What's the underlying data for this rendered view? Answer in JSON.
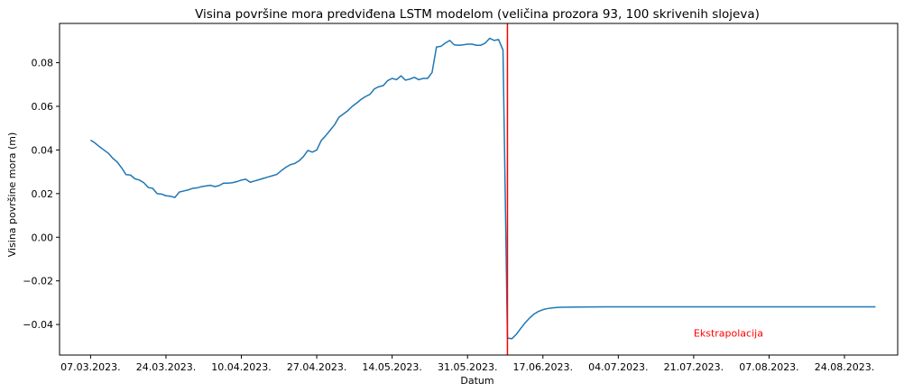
{
  "chart_data": {
    "type": "line",
    "title": "Visina površine mora predviđena LSTM modelom (veličina prozora 93, 100 skrivenih slojeva)",
    "xlabel": "Datum",
    "ylabel": "Visina površine mora (m)",
    "ylim": [
      -0.054,
      0.098
    ],
    "xlim": [
      "2023-02-28",
      "2023-09-05"
    ],
    "grid": false,
    "x_ticks": [
      {
        "date": "2023-03-07",
        "label": "07.03.2023."
      },
      {
        "date": "2023-03-24",
        "label": "24.03.2023."
      },
      {
        "date": "2023-04-10",
        "label": "10.04.2023."
      },
      {
        "date": "2023-04-27",
        "label": "27.04.2023."
      },
      {
        "date": "2023-05-14",
        "label": "14.05.2023."
      },
      {
        "date": "2023-05-31",
        "label": "31.05.2023."
      },
      {
        "date": "2023-06-17",
        "label": "17.06.2023."
      },
      {
        "date": "2023-07-04",
        "label": "04.07.2023."
      },
      {
        "date": "2023-07-21",
        "label": "21.07.2023."
      },
      {
        "date": "2023-08-07",
        "label": "07.08.2023."
      },
      {
        "date": "2023-08-24",
        "label": "24.08.2023."
      }
    ],
    "y_ticks": [
      {
        "value": -0.04,
        "label": "−0.04"
      },
      {
        "value": -0.02,
        "label": "−0.02"
      },
      {
        "value": 0.0,
        "label": "0.00"
      },
      {
        "value": 0.02,
        "label": "0.02"
      },
      {
        "value": 0.04,
        "label": "0.04"
      },
      {
        "value": 0.06,
        "label": "0.06"
      },
      {
        "value": 0.08,
        "label": "0.08"
      }
    ],
    "series": [
      {
        "color": "#1f77b4",
        "points": [
          [
            "2023-03-07",
            0.0445
          ],
          [
            "2023-03-08",
            0.0432
          ],
          [
            "2023-03-09",
            0.0415
          ],
          [
            "2023-03-10",
            0.04
          ],
          [
            "2023-03-11",
            0.0385
          ],
          [
            "2023-03-12",
            0.0362
          ],
          [
            "2023-03-13",
            0.0345
          ],
          [
            "2023-03-14",
            0.0318
          ],
          [
            "2023-03-15",
            0.0287
          ],
          [
            "2023-03-16",
            0.0285
          ],
          [
            "2023-03-17",
            0.0268
          ],
          [
            "2023-03-18",
            0.0262
          ],
          [
            "2023-03-19",
            0.025
          ],
          [
            "2023-03-20",
            0.0228
          ],
          [
            "2023-03-21",
            0.0224
          ],
          [
            "2023-03-22",
            0.02
          ],
          [
            "2023-03-23",
            0.0198
          ],
          [
            "2023-03-24",
            0.019
          ],
          [
            "2023-03-25",
            0.0188
          ],
          [
            "2023-03-26",
            0.0182
          ],
          [
            "2023-03-27",
            0.0207
          ],
          [
            "2023-03-28",
            0.0212
          ],
          [
            "2023-03-29",
            0.0217
          ],
          [
            "2023-03-30",
            0.0224
          ],
          [
            "2023-03-31",
            0.0226
          ],
          [
            "2023-04-01",
            0.0232
          ],
          [
            "2023-04-02",
            0.0235
          ],
          [
            "2023-04-03",
            0.0238
          ],
          [
            "2023-04-04",
            0.0232
          ],
          [
            "2023-04-05",
            0.0237
          ],
          [
            "2023-04-06",
            0.0248
          ],
          [
            "2023-04-07",
            0.0248
          ],
          [
            "2023-04-08",
            0.025
          ],
          [
            "2023-04-09",
            0.0255
          ],
          [
            "2023-04-10",
            0.0262
          ],
          [
            "2023-04-11",
            0.0266
          ],
          [
            "2023-04-12",
            0.0252
          ],
          [
            "2023-04-13",
            0.0258
          ],
          [
            "2023-04-14",
            0.0264
          ],
          [
            "2023-04-15",
            0.027
          ],
          [
            "2023-04-16",
            0.0276
          ],
          [
            "2023-04-17",
            0.0282
          ],
          [
            "2023-04-18",
            0.0288
          ],
          [
            "2023-04-19",
            0.0305
          ],
          [
            "2023-04-20",
            0.032
          ],
          [
            "2023-04-21",
            0.0332
          ],
          [
            "2023-04-22",
            0.0338
          ],
          [
            "2023-04-23",
            0.035
          ],
          [
            "2023-04-24",
            0.037
          ],
          [
            "2023-04-25",
            0.0398
          ],
          [
            "2023-04-26",
            0.039
          ],
          [
            "2023-04-27",
            0.04
          ],
          [
            "2023-04-28",
            0.0443
          ],
          [
            "2023-04-29",
            0.0465
          ],
          [
            "2023-04-30",
            0.049
          ],
          [
            "2023-05-01",
            0.0515
          ],
          [
            "2023-05-02",
            0.055
          ],
          [
            "2023-05-03",
            0.0565
          ],
          [
            "2023-05-04",
            0.058
          ],
          [
            "2023-05-05",
            0.06
          ],
          [
            "2023-05-06",
            0.0615
          ],
          [
            "2023-05-07",
            0.0632
          ],
          [
            "2023-05-08",
            0.0645
          ],
          [
            "2023-05-09",
            0.0655
          ],
          [
            "2023-05-10",
            0.068
          ],
          [
            "2023-05-11",
            0.069
          ],
          [
            "2023-05-12",
            0.0695
          ],
          [
            "2023-05-13",
            0.0718
          ],
          [
            "2023-05-14",
            0.0728
          ],
          [
            "2023-05-15",
            0.0722
          ],
          [
            "2023-05-16",
            0.074
          ],
          [
            "2023-05-17",
            0.072
          ],
          [
            "2023-05-18",
            0.0725
          ],
          [
            "2023-05-19",
            0.0733
          ],
          [
            "2023-05-20",
            0.0722
          ],
          [
            "2023-05-21",
            0.0728
          ],
          [
            "2023-05-22",
            0.0728
          ],
          [
            "2023-05-23",
            0.0755
          ],
          [
            "2023-05-24",
            0.0872
          ],
          [
            "2023-05-25",
            0.0875
          ],
          [
            "2023-05-26",
            0.089
          ],
          [
            "2023-05-27",
            0.0902
          ],
          [
            "2023-05-28",
            0.0882
          ],
          [
            "2023-05-29",
            0.088
          ],
          [
            "2023-05-30",
            0.0882
          ],
          [
            "2023-05-31",
            0.0885
          ],
          [
            "2023-06-01",
            0.0885
          ],
          [
            "2023-06-02",
            0.088
          ],
          [
            "2023-06-03",
            0.088
          ],
          [
            "2023-06-04",
            0.089
          ],
          [
            "2023-06-05",
            0.0912
          ],
          [
            "2023-06-06",
            0.0902
          ],
          [
            "2023-06-07",
            0.0906
          ],
          [
            "2023-06-08",
            0.0858
          ],
          [
            "2023-06-09",
            -0.0462
          ],
          [
            "2023-06-10",
            -0.0465
          ],
          [
            "2023-06-11",
            -0.0445
          ],
          [
            "2023-06-12",
            -0.0418
          ],
          [
            "2023-06-13",
            -0.0392
          ],
          [
            "2023-06-14",
            -0.037
          ],
          [
            "2023-06-15",
            -0.0352
          ],
          [
            "2023-06-16",
            -0.034
          ],
          [
            "2023-06-17",
            -0.0332
          ],
          [
            "2023-06-18",
            -0.0327
          ],
          [
            "2023-06-19",
            -0.0324
          ],
          [
            "2023-06-20",
            -0.0322
          ],
          [
            "2023-06-21",
            -0.0321
          ],
          [
            "2023-06-24",
            -0.032
          ],
          [
            "2023-07-01",
            -0.0319
          ],
          [
            "2023-07-15",
            -0.0319
          ],
          [
            "2023-08-01",
            -0.0319
          ],
          [
            "2023-08-15",
            -0.0319
          ],
          [
            "2023-08-31",
            -0.0319
          ]
        ]
      }
    ],
    "vline": {
      "date": "2023-06-09",
      "color": "#ff0000"
    },
    "annotations": [
      {
        "text": "Ekstrapolacija",
        "date": "2023-07-21",
        "value": -0.0455,
        "color": "#ff0000"
      }
    ]
  }
}
